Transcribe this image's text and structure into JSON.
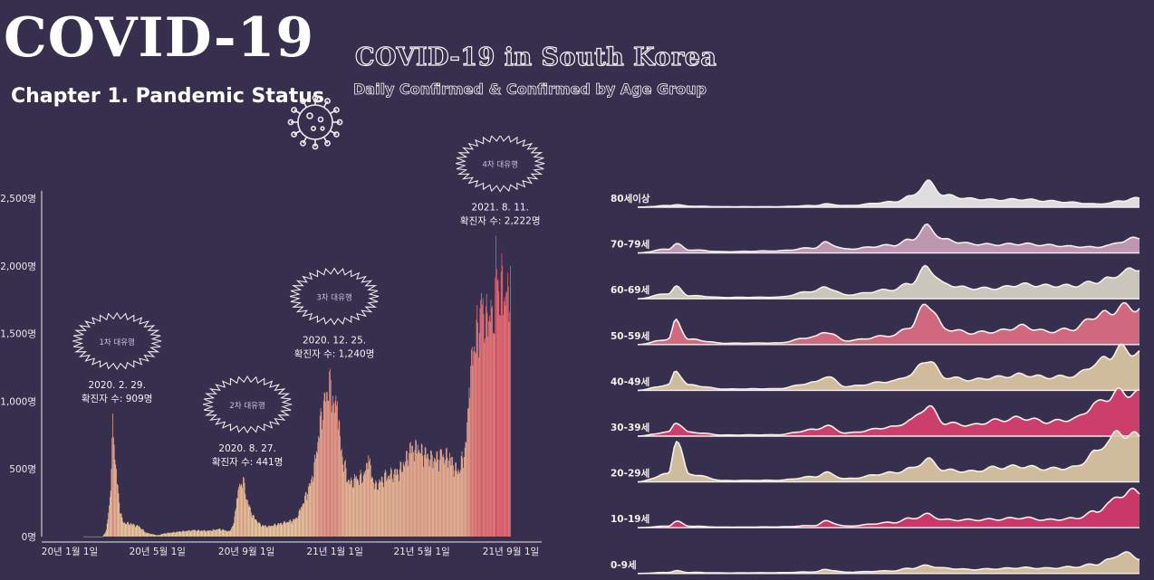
{
  "header": {
    "main_title": "COVID-19",
    "chapter": "Chapter 1. Pandemic Status",
    "chart_title": "COVID-19 in South Korea",
    "chart_subtitle": "Daily Confirmed & Confirmed by Age Group"
  },
  "icons": {
    "virus": "virus-icon"
  },
  "colors": {
    "background": "#372f4e",
    "bar_light": "#fbd6a4",
    "bar_dark": "#f0566a",
    "ridge_light": "#dcc9a4",
    "ridge_pink": "#d9406e",
    "ridge_grey": "#d8d4c6",
    "ridge_mauve": "#c9a0b8"
  },
  "chart_data": [
    {
      "type": "bar",
      "title": "",
      "xlabel": "",
      "ylabel": "",
      "ylim": [
        0,
        2500
      ],
      "x_range": [
        "2020-01-20",
        "2021-08-31"
      ],
      "yticks": [
        {
          "value": 0,
          "label": "0명"
        },
        {
          "value": 500,
          "label": "500명"
        },
        {
          "value": 1000,
          "label": "1,000명"
        },
        {
          "value": 1500,
          "label": "1,500명"
        },
        {
          "value": 2000,
          "label": "2,000명"
        },
        {
          "value": 2500,
          "label": "2,500명"
        }
      ],
      "xticks": [
        {
          "date": "2020-01-01",
          "label": "20년 1월 1일"
        },
        {
          "date": "2020-05-01",
          "label": "20년 5월 1일"
        },
        {
          "date": "2020-09-01",
          "label": "20년 9월 1일"
        },
        {
          "date": "2021-01-01",
          "label": "21년 1월 1일"
        },
        {
          "date": "2021-05-01",
          "label": "21년 5월 1일"
        },
        {
          "date": "2021-09-01",
          "label": "21년 9월 1일"
        }
      ],
      "series_points": [
        [
          "2020-01-20",
          1
        ],
        [
          "2020-02-15",
          0
        ],
        [
          "2020-02-20",
          50
        ],
        [
          "2020-02-24",
          230
        ],
        [
          "2020-02-27",
          500
        ],
        [
          "2020-02-29",
          909
        ],
        [
          "2020-03-02",
          680
        ],
        [
          "2020-03-05",
          500
        ],
        [
          "2020-03-09",
          250
        ],
        [
          "2020-03-14",
          110
        ],
        [
          "2020-03-25",
          100
        ],
        [
          "2020-04-05",
          80
        ],
        [
          "2020-04-15",
          30
        ],
        [
          "2020-05-01",
          10
        ],
        [
          "2020-05-10",
          25
        ],
        [
          "2020-06-01",
          40
        ],
        [
          "2020-06-20",
          50
        ],
        [
          "2020-07-10",
          45
        ],
        [
          "2020-07-25",
          60
        ],
        [
          "2020-08-08",
          40
        ],
        [
          "2020-08-14",
          100
        ],
        [
          "2020-08-18",
          280
        ],
        [
          "2020-08-22",
          390
        ],
        [
          "2020-08-27",
          441
        ],
        [
          "2020-09-02",
          270
        ],
        [
          "2020-09-10",
          160
        ],
        [
          "2020-09-20",
          90
        ],
        [
          "2020-10-01",
          80
        ],
        [
          "2020-10-15",
          100
        ],
        [
          "2020-10-30",
          120
        ],
        [
          "2020-11-08",
          140
        ],
        [
          "2020-11-15",
          220
        ],
        [
          "2020-11-22",
          330
        ],
        [
          "2020-11-30",
          450
        ],
        [
          "2020-12-06",
          630
        ],
        [
          "2020-12-12",
          950
        ],
        [
          "2020-12-18",
          1060
        ],
        [
          "2020-12-25",
          1240
        ],
        [
          "2020-12-29",
          1040
        ],
        [
          "2021-01-04",
          1000
        ],
        [
          "2021-01-10",
          650
        ],
        [
          "2021-01-20",
          420
        ],
        [
          "2021-01-30",
          450
        ],
        [
          "2021-02-10",
          480
        ],
        [
          "2021-02-16",
          600
        ],
        [
          "2021-02-25",
          390
        ],
        [
          "2021-03-10",
          470
        ],
        [
          "2021-03-25",
          500
        ],
        [
          "2021-04-05",
          550
        ],
        [
          "2021-04-15",
          700
        ],
        [
          "2021-04-25",
          680
        ],
        [
          "2021-05-05",
          660
        ],
        [
          "2021-05-15",
          600
        ],
        [
          "2021-05-28",
          640
        ],
        [
          "2021-06-08",
          620
        ],
        [
          "2021-06-20",
          500
        ],
        [
          "2021-06-30",
          700
        ],
        [
          "2021-07-05",
          1100
        ],
        [
          "2021-07-09",
          1400
        ],
        [
          "2021-07-15",
          1600
        ],
        [
          "2021-07-22",
          1800
        ],
        [
          "2021-07-28",
          1700
        ],
        [
          "2021-08-04",
          1750
        ],
        [
          "2021-08-08",
          1500
        ],
        [
          "2021-08-11",
          2222
        ],
        [
          "2021-08-14",
          1900
        ],
        [
          "2021-08-20",
          2000
        ],
        [
          "2021-08-25",
          1800
        ],
        [
          "2021-08-31",
          2000
        ]
      ],
      "annotations": [
        {
          "wave": "1차 대유행",
          "date_label": "2020. 2. 29.",
          "count_label": "확진자 수: 909명",
          "date": "2020-02-29",
          "value": 909
        },
        {
          "wave": "2차 대유행",
          "date_label": "2020. 8. 27.",
          "count_label": "확진자 수: 441명",
          "date": "2020-08-27",
          "value": 441
        },
        {
          "wave": "3차 대유행",
          "date_label": "2020. 12. 25.",
          "count_label": "확진자 수: 1,240명",
          "date": "2020-12-25",
          "value": 1240
        },
        {
          "wave": "4차 대유행",
          "date_label": "2021. 8. 11.",
          "count_label": "확진자 수: 2,222명",
          "date": "2021-08-11",
          "value": 2222
        }
      ]
    },
    {
      "type": "area",
      "subtype": "ridgeline",
      "title": "",
      "x_range": [
        "2020-01-20",
        "2021-08-31"
      ],
      "series_x": [
        "2020-01-20",
        "2020-02-25",
        "2020-03-05",
        "2020-03-20",
        "2020-05-01",
        "2020-07-01",
        "2020-08-15",
        "2020-08-28",
        "2020-09-20",
        "2020-11-15",
        "2020-12-05",
        "2020-12-25",
        "2021-01-15",
        "2021-02-15",
        "2021-03-15",
        "2021-04-15",
        "2021-05-15",
        "2021-06-15",
        "2021-07-10",
        "2021-07-25",
        "2021-08-10",
        "2021-08-31"
      ],
      "series": [
        {
          "name": "80세이상",
          "color": "#ebebeb",
          "values": [
            0.0,
            0.06,
            0.1,
            0.04,
            0.02,
            0.02,
            0.06,
            0.12,
            0.06,
            0.2,
            0.4,
            0.95,
            0.45,
            0.32,
            0.28,
            0.3,
            0.24,
            0.18,
            0.12,
            0.15,
            0.25,
            0.35
          ]
        },
        {
          "name": "70-79세",
          "color": "#c9a0b8",
          "values": [
            0.0,
            0.15,
            0.35,
            0.12,
            0.05,
            0.08,
            0.2,
            0.4,
            0.15,
            0.3,
            0.5,
            1.0,
            0.5,
            0.35,
            0.32,
            0.35,
            0.3,
            0.25,
            0.22,
            0.28,
            0.45,
            0.6
          ]
        },
        {
          "name": "60-69세",
          "color": "#d8d4c6",
          "values": [
            0.0,
            0.2,
            0.45,
            0.12,
            0.05,
            0.06,
            0.3,
            0.45,
            0.15,
            0.35,
            0.6,
            1.2,
            0.55,
            0.4,
            0.4,
            0.55,
            0.5,
            0.5,
            0.65,
            0.75,
            1.0,
            1.2
          ]
        },
        {
          "name": "50-59세",
          "color": "#dd6e83",
          "values": [
            0.0,
            0.2,
            0.9,
            0.2,
            0.05,
            0.06,
            0.3,
            0.5,
            0.15,
            0.35,
            0.7,
            1.6,
            0.6,
            0.45,
            0.5,
            0.7,
            0.5,
            0.6,
            1.1,
            1.2,
            1.45,
            1.4
          ]
        },
        {
          "name": "40-49세",
          "color": "#dcc9a4",
          "values": [
            0.0,
            0.2,
            0.75,
            0.2,
            0.05,
            0.06,
            0.3,
            0.55,
            0.15,
            0.35,
            0.6,
            1.2,
            0.5,
            0.4,
            0.5,
            0.6,
            0.5,
            0.55,
            1.0,
            1.3,
            1.6,
            1.4
          ]
        },
        {
          "name": "30-39세",
          "color": "#d9406e",
          "values": [
            0.0,
            0.15,
            0.55,
            0.15,
            0.04,
            0.05,
            0.25,
            0.4,
            0.12,
            0.35,
            0.6,
            1.15,
            0.5,
            0.42,
            0.6,
            0.7,
            0.55,
            0.65,
            1.2,
            1.5,
            1.7,
            1.6
          ]
        },
        {
          "name": "20-29세",
          "color": "#dcc9a4",
          "values": [
            0.0,
            0.3,
            1.7,
            0.3,
            0.05,
            0.06,
            0.2,
            0.35,
            0.12,
            0.35,
            0.5,
            0.85,
            0.45,
            0.4,
            0.55,
            0.6,
            0.5,
            0.55,
            1.1,
            1.6,
            1.9,
            1.7
          ]
        },
        {
          "name": "10-19세",
          "color": "#d63a6a",
          "values": [
            0.0,
            0.06,
            0.25,
            0.06,
            0.02,
            0.03,
            0.08,
            0.25,
            0.06,
            0.2,
            0.35,
            0.5,
            0.3,
            0.3,
            0.32,
            0.38,
            0.3,
            0.35,
            0.6,
            0.9,
            1.3,
            1.4
          ]
        },
        {
          "name": "0-9세",
          "color": "#dcc9a4",
          "values": [
            0.0,
            0.04,
            0.1,
            0.04,
            0.02,
            0.03,
            0.06,
            0.15,
            0.05,
            0.1,
            0.2,
            0.3,
            0.2,
            0.15,
            0.18,
            0.22,
            0.2,
            0.25,
            0.35,
            0.5,
            0.8,
            0.6
          ]
        }
      ]
    }
  ]
}
